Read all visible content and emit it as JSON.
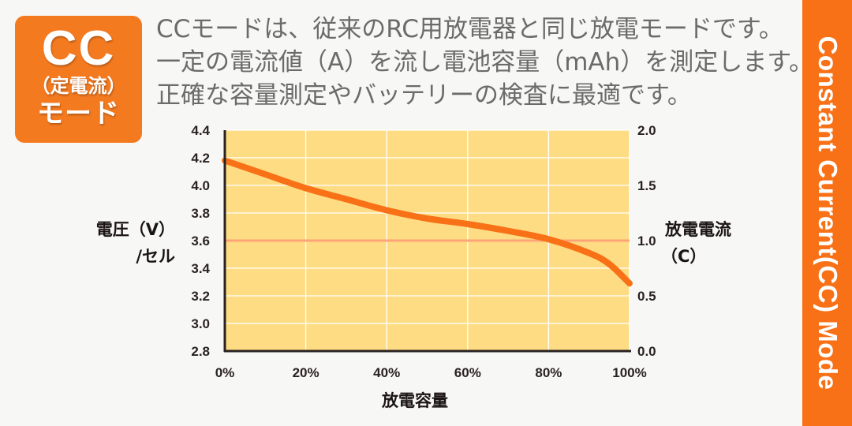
{
  "badge": {
    "title": "CC",
    "subtitle": "（定電流）",
    "mode": "モード",
    "color": "#f47a20"
  },
  "description": {
    "lines": [
      "CCモードは、従来のRC用放電器と同じ放電モードです。",
      "一定の電流値（A）を流し電池容量（mAh）を測定します。",
      "正確な容量測定やバッテリーの検査に最適です。"
    ],
    "color": "#6b6b6b"
  },
  "side_banner": {
    "text": "Constant Current(CC) Mode",
    "color": "#f87117"
  },
  "chart_data": {
    "type": "line",
    "title": "",
    "xlabel": "放電容量",
    "ylabel": "電圧（V）/セル",
    "y2label": "放電電流（C）",
    "x_ticks": [
      "0%",
      "20%",
      "40%",
      "60%",
      "80%",
      "100%"
    ],
    "y_ticks": [
      "4.4",
      "4.2",
      "4.0",
      "3.8",
      "3.6",
      "3.4",
      "3.2",
      "3.0",
      "2.8"
    ],
    "y2_ticks": [
      "2.0",
      "1.5",
      "1.0",
      "0.5",
      "0.0"
    ],
    "xlim": [
      0,
      100
    ],
    "ylim": [
      2.8,
      4.4
    ],
    "y2lim": [
      0.0,
      2.0
    ],
    "grid": true,
    "series": [
      {
        "name": "電圧（V）/セル",
        "axis": "left",
        "color": "#f87117",
        "x": [
          0,
          10,
          20,
          30,
          40,
          50,
          60,
          70,
          80,
          90,
          95,
          100
        ],
        "values": [
          4.18,
          4.08,
          3.98,
          3.9,
          3.82,
          3.76,
          3.72,
          3.67,
          3.61,
          3.51,
          3.43,
          3.29
        ]
      },
      {
        "name": "放電電流（C）",
        "axis": "right",
        "color": "#fca477",
        "x": [
          0,
          100
        ],
        "values": [
          1.0,
          1.0
        ]
      }
    ],
    "plot_bg": "#fedc83"
  }
}
